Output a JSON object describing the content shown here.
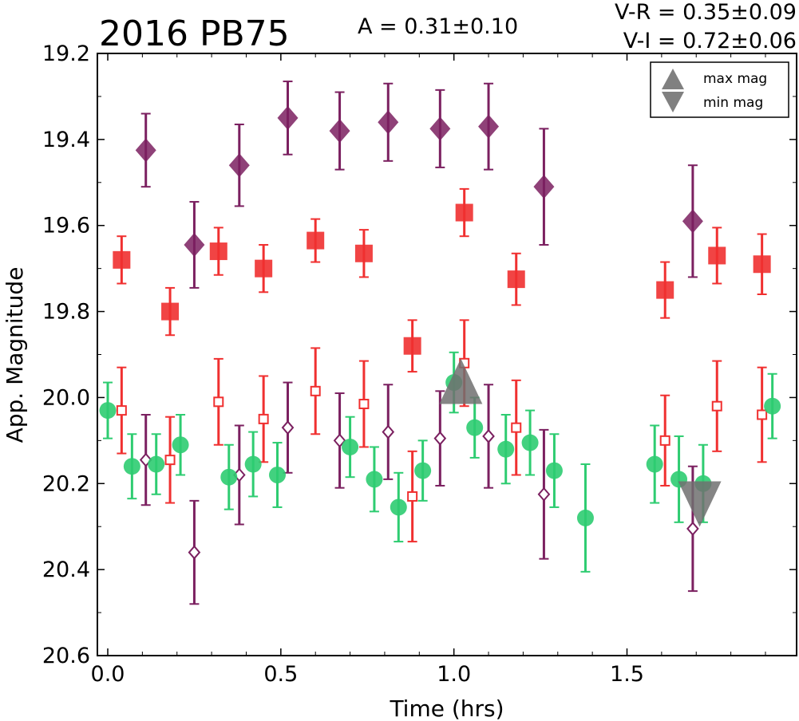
{
  "header": {
    "title": "2016 PB75",
    "amplitude": "A  = 0.31±0.10",
    "color_vr": "V-R = 0.35±0.09",
    "color_vi": "V-I  = 0.72±0.06"
  },
  "legend": {
    "placement": "top-right",
    "items": [
      {
        "label": "max mag",
        "marker": "triangle-up",
        "color": "#808080"
      },
      {
        "label": "min mag",
        "marker": "triangle-down",
        "color": "#808080"
      }
    ]
  },
  "chart_data": {
    "type": "scatter",
    "xlabel": "Time (hrs)",
    "ylabel": "App. Magnitude",
    "xlim": [
      -0.03,
      1.99
    ],
    "ylim": [
      20.6,
      19.2
    ],
    "y_inverted": true,
    "xticks": [
      0.0,
      0.5,
      1.0,
      1.5
    ],
    "xtick_labels": [
      "0.0",
      "0.5",
      "1.0",
      "1.5"
    ],
    "yticks": [
      19.2,
      19.4,
      19.6,
      19.8,
      20.0,
      20.2,
      20.4,
      20.6
    ],
    "ytick_labels": [
      "19.2",
      "19.4",
      "19.6",
      "19.8",
      "20.0",
      "20.2",
      "20.4",
      "20.6"
    ],
    "grid": false,
    "series": [
      {
        "marker": "diamond-filled",
        "color": "#7b2060",
        "points": [
          {
            "x": 0.11,
            "y": 19.425,
            "err": 0.085
          },
          {
            "x": 0.25,
            "y": 19.645,
            "err": 0.1
          },
          {
            "x": 0.38,
            "y": 19.46,
            "err": 0.095
          },
          {
            "x": 0.52,
            "y": 19.35,
            "err": 0.085
          },
          {
            "x": 0.67,
            "y": 19.38,
            "err": 0.09
          },
          {
            "x": 0.81,
            "y": 19.36,
            "err": 0.09
          },
          {
            "x": 0.96,
            "y": 19.375,
            "err": 0.09
          },
          {
            "x": 1.1,
            "y": 19.37,
            "err": 0.1
          },
          {
            "x": 1.26,
            "y": 19.51,
            "err": 0.135
          },
          {
            "x": 1.69,
            "y": 19.59,
            "err": 0.13
          }
        ]
      },
      {
        "marker": "square-filled",
        "color": "#f03030",
        "points": [
          {
            "x": 0.04,
            "y": 19.68,
            "err": 0.055
          },
          {
            "x": 0.18,
            "y": 19.8,
            "err": 0.055
          },
          {
            "x": 0.32,
            "y": 19.66,
            "err": 0.055
          },
          {
            "x": 0.45,
            "y": 19.7,
            "err": 0.055
          },
          {
            "x": 0.6,
            "y": 19.635,
            "err": 0.05
          },
          {
            "x": 0.74,
            "y": 19.665,
            "err": 0.055
          },
          {
            "x": 0.88,
            "y": 19.88,
            "err": 0.06
          },
          {
            "x": 1.03,
            "y": 19.57,
            "err": 0.055
          },
          {
            "x": 1.18,
            "y": 19.725,
            "err": 0.06
          },
          {
            "x": 1.61,
            "y": 19.75,
            "err": 0.065
          },
          {
            "x": 1.76,
            "y": 19.67,
            "err": 0.065
          },
          {
            "x": 1.89,
            "y": 19.69,
            "err": 0.07
          }
        ]
      },
      {
        "marker": "circle-filled",
        "color": "#2ecc71",
        "points": [
          {
            "x": 0.0,
            "y": 20.03,
            "err": 0.065
          },
          {
            "x": 0.07,
            "y": 20.16,
            "err": 0.075
          },
          {
            "x": 0.14,
            "y": 20.155,
            "err": 0.07
          },
          {
            "x": 0.21,
            "y": 20.11,
            "err": 0.07
          },
          {
            "x": 0.35,
            "y": 20.185,
            "err": 0.075
          },
          {
            "x": 0.42,
            "y": 20.155,
            "err": 0.075
          },
          {
            "x": 0.49,
            "y": 20.18,
            "err": 0.075
          },
          {
            "x": 0.7,
            "y": 20.115,
            "err": 0.07
          },
          {
            "x": 0.77,
            "y": 20.19,
            "err": 0.075
          },
          {
            "x": 0.84,
            "y": 20.255,
            "err": 0.08
          },
          {
            "x": 0.91,
            "y": 20.17,
            "err": 0.07
          },
          {
            "x": 1.0,
            "y": 19.965,
            "err": 0.07
          },
          {
            "x": 1.06,
            "y": 20.07,
            "err": 0.07
          },
          {
            "x": 1.15,
            "y": 20.12,
            "err": 0.08
          },
          {
            "x": 1.22,
            "y": 20.105,
            "err": 0.075
          },
          {
            "x": 1.29,
            "y": 20.17,
            "err": 0.085
          },
          {
            "x": 1.38,
            "y": 20.28,
            "err": 0.125
          },
          {
            "x": 1.58,
            "y": 20.155,
            "err": 0.09
          },
          {
            "x": 1.65,
            "y": 20.19,
            "err": 0.1
          },
          {
            "x": 1.72,
            "y": 20.2,
            "err": 0.09
          },
          {
            "x": 1.92,
            "y": 20.02,
            "err": 0.075
          }
        ]
      },
      {
        "marker": "square-open",
        "color": "#f03030",
        "points": [
          {
            "x": 0.04,
            "y": 20.03,
            "err": 0.1
          },
          {
            "x": 0.18,
            "y": 20.145,
            "err": 0.1
          },
          {
            "x": 0.32,
            "y": 20.01,
            "err": 0.1
          },
          {
            "x": 0.45,
            "y": 20.05,
            "err": 0.1
          },
          {
            "x": 0.6,
            "y": 19.985,
            "err": 0.1
          },
          {
            "x": 0.74,
            "y": 20.015,
            "err": 0.1
          },
          {
            "x": 0.88,
            "y": 20.23,
            "err": 0.105
          },
          {
            "x": 1.03,
            "y": 19.92,
            "err": 0.1
          },
          {
            "x": 1.18,
            "y": 20.07,
            "err": 0.11
          },
          {
            "x": 1.61,
            "y": 20.1,
            "err": 0.105
          },
          {
            "x": 1.76,
            "y": 20.02,
            "err": 0.105
          },
          {
            "x": 1.89,
            "y": 20.04,
            "err": 0.11
          }
        ]
      },
      {
        "marker": "diamond-open",
        "color": "#7b2060",
        "points": [
          {
            "x": 0.11,
            "y": 20.145,
            "err": 0.105
          },
          {
            "x": 0.25,
            "y": 20.36,
            "err": 0.12
          },
          {
            "x": 0.38,
            "y": 20.18,
            "err": 0.115
          },
          {
            "x": 0.52,
            "y": 20.07,
            "err": 0.105
          },
          {
            "x": 0.67,
            "y": 20.1,
            "err": 0.11
          },
          {
            "x": 0.81,
            "y": 20.08,
            "err": 0.11
          },
          {
            "x": 0.96,
            "y": 20.095,
            "err": 0.11
          },
          {
            "x": 1.1,
            "y": 20.09,
            "err": 0.12
          },
          {
            "x": 1.26,
            "y": 20.225,
            "err": 0.15
          },
          {
            "x": 1.69,
            "y": 20.305,
            "err": 0.145
          }
        ]
      }
    ],
    "extrema": [
      {
        "label": "max mag",
        "x": 1.02,
        "y": 19.965,
        "marker": "triangle-up"
      },
      {
        "label": "min mag",
        "x": 1.71,
        "y": 20.245,
        "marker": "triangle-down"
      }
    ]
  }
}
